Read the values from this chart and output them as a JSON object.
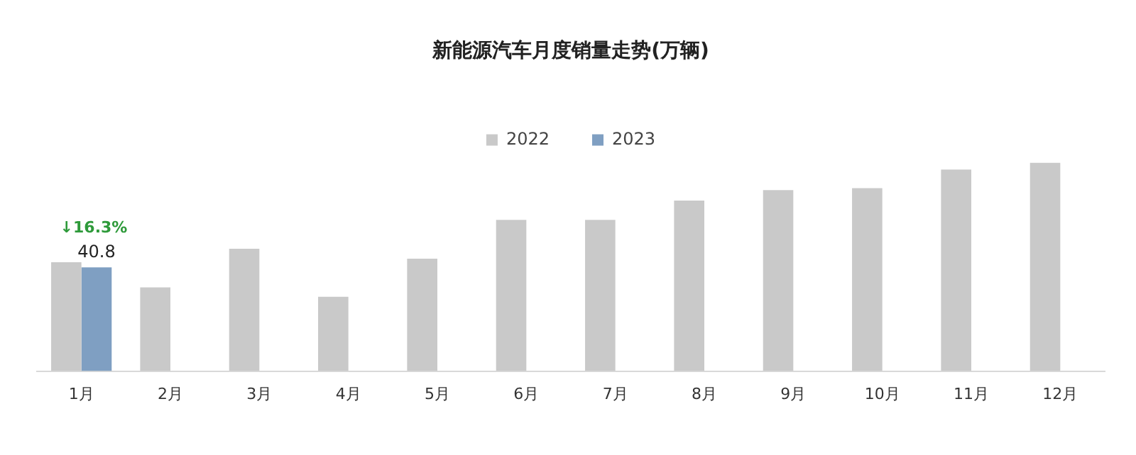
{
  "chart_data": {
    "type": "bar",
    "title": "新能源汽车月度销量走势(万辆)",
    "categories": [
      "1月",
      "2月",
      "3月",
      "4月",
      "5月",
      "6月",
      "7月",
      "8月",
      "9月",
      "10月",
      "11月",
      "12月"
    ],
    "series": [
      {
        "name": "2022",
        "color": "#c9c9c9",
        "values": [
          42.8,
          32.9,
          48.1,
          29.2,
          44.2,
          59.4,
          59.4,
          67.0,
          71.1,
          71.9,
          79.2,
          81.9
        ]
      },
      {
        "name": "2023",
        "color": "#7f9fc2",
        "values": [
          40.8,
          null,
          null,
          null,
          null,
          null,
          null,
          null,
          null,
          null,
          null,
          null
        ],
        "value_labels": [
          "40.8",
          null,
          null,
          null,
          null,
          null,
          null,
          null,
          null,
          null,
          null,
          null
        ]
      }
    ],
    "annotations": [
      {
        "text": "↓16.3%",
        "x": "1月",
        "y": 40.8
      }
    ],
    "legend": "top",
    "grid": false
  }
}
